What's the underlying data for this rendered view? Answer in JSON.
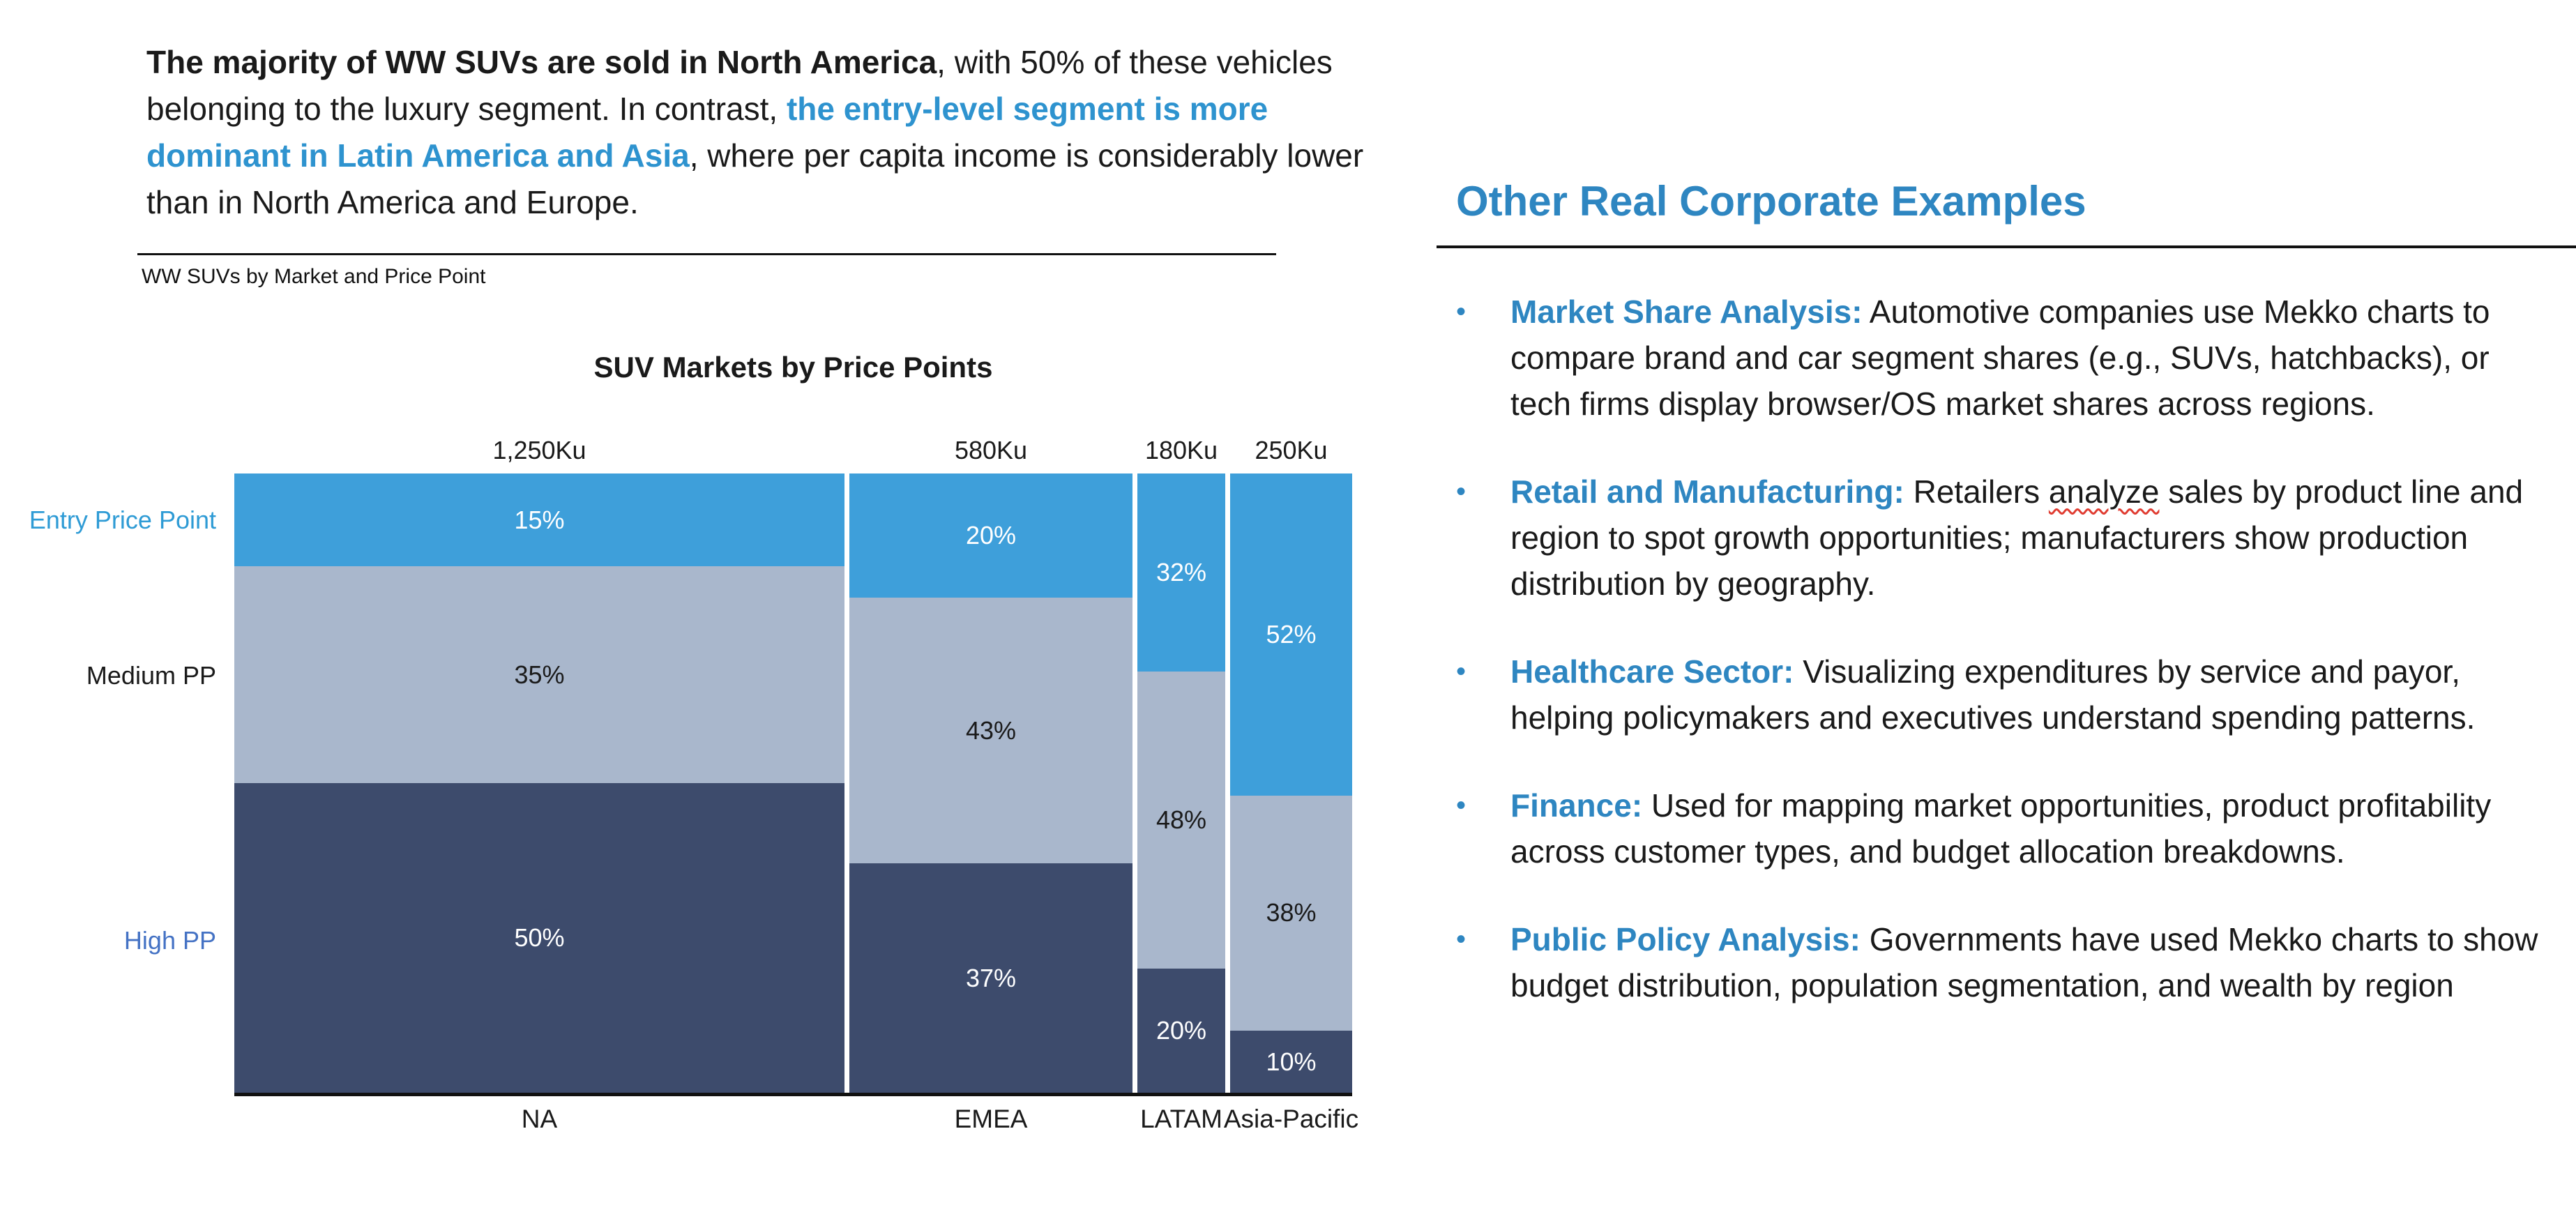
{
  "intro": {
    "parts": [
      {
        "text": "The majority of WW SUVs are sold in North America"
      },
      {
        "text": ", with 50% of these vehicles belonging to the luxury segment. In contrast, "
      },
      {
        "text": "the entry-level segment is more dominant in Latin America and Asia"
      },
      {
        "text": ", where per capita income is considerably lower than in North America and Europe."
      }
    ]
  },
  "chart_caption": "WW SUVs by Market and Price Point",
  "chart_data": {
    "type": "mekko",
    "title": "SUV Markets by Price Points",
    "value_suffix": "%",
    "columns": [
      {
        "label": "NA",
        "size_label": "1,250Ku",
        "size": 1250,
        "values": [
          15,
          35,
          50
        ]
      },
      {
        "label": "EMEA",
        "size_label": "580Ku",
        "size": 580,
        "values": [
          20,
          43,
          37
        ]
      },
      {
        "label": "LATAM",
        "size_label": "180Ku",
        "size": 180,
        "values": [
          32,
          48,
          20
        ]
      },
      {
        "label": "Asia-Pacific",
        "size_label": "250Ku",
        "size": 250,
        "values": [
          52,
          38,
          10
        ]
      }
    ],
    "rows": [
      {
        "label": "Entry Price Point",
        "fill": "#3E9FDA",
        "value_text_color": "#ffffff",
        "axis_label_color": "#2E9BD5"
      },
      {
        "label": "Medium PP",
        "fill": "#A9B7CC",
        "value_text_color": "#1a1a1a",
        "axis_label_color": "#1a1a1a"
      },
      {
        "label": "High PP",
        "fill": "#3D4B6C",
        "value_text_color": "#ffffff",
        "axis_label_color": "#4472C4"
      }
    ]
  },
  "colors": {
    "accent_text_blue": "#2E86C1",
    "intro_highlight_blue": "#2E93CF",
    "axis_line": "#111111"
  },
  "right_panel": {
    "title": "Other Real Corporate Examples",
    "bullet_glyph": "•",
    "bullets": [
      {
        "lead": "Market Share Analysis:",
        "body": [
          {
            "text": " Automotive companies use Mekko charts to compare brand and car segment shares (e.g., SUVs, hatchbacks), or tech firms display browser/OS market shares across regions."
          }
        ]
      },
      {
        "lead": "Retail and Manufacturing:",
        "body": [
          {
            "text": " Retailers "
          },
          {
            "text": "analyze",
            "squiggle": true
          },
          {
            "text": " sales by product line and region to spot growth opportunities; manufacturers show production distribution by geography."
          }
        ]
      },
      {
        "lead": "Healthcare Sector:",
        "body": [
          {
            "text": " Visualizing expenditures by service and payor, helping policymakers and executives understand spending patterns."
          }
        ]
      },
      {
        "lead": "Finance:",
        "body": [
          {
            "text": " Used for mapping market opportunities, product profitability across customer types, and budget allocation breakdowns."
          }
        ]
      },
      {
        "lead": "Public Policy Analysis:",
        "body": [
          {
            "text": " Governments have used Mekko charts to show budget distribution, population segmentation, and wealth by region"
          }
        ]
      }
    ]
  }
}
